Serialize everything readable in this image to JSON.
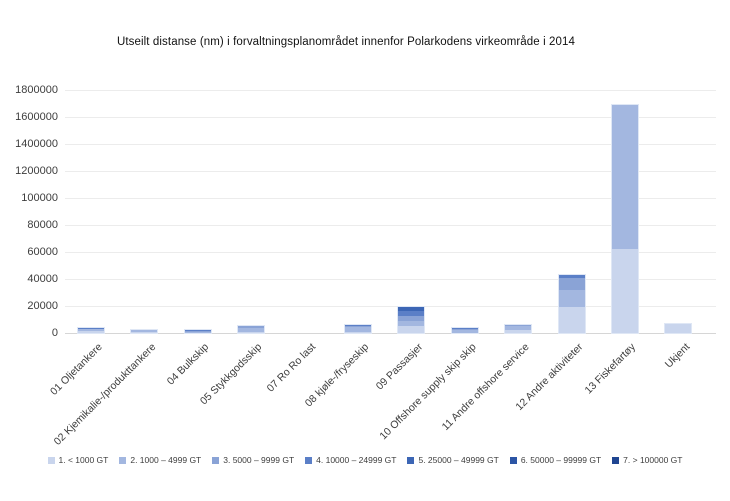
{
  "title": "Utseilt distanse (nm) i forvaltningsplanområdet innenfor Polarkodens virkeområde i 2014",
  "chart_data": {
    "type": "bar",
    "stacked": true,
    "title": "Utseilt distanse (nm) i forvaltningsplanområdet innenfor Polarkodens virkeområde i 2014",
    "grid": true,
    "legend_position": "bottom",
    "categories": [
      "01 Oljetankere",
      "02 Kjemikalie-/produkttankere",
      "04 Bulkskip",
      "05 Stykkgodsskip",
      "07 Ro Ro last",
      "08 kjøle-/fryseskip",
      "09 Passasjer",
      "10 Offshore supply skip skip",
      "11 Andre offshore service",
      "12 Andre aktiviteter",
      "13 Fiskefartøy",
      "Ukjent"
    ],
    "y_ticks": [
      0,
      20000,
      40000,
      60000,
      80000,
      100000,
      1200000,
      1400000,
      1600000,
      1800000
    ],
    "y_tick_labels": [
      "0",
      "20000",
      "40000",
      "60000",
      "80000",
      "100000",
      "1200000",
      "1400000",
      "1600000",
      "1800000"
    ],
    "series": [
      {
        "name": "1. < 1000 GT",
        "color": "#c9d5ed",
        "values": [
          1500,
          800,
          300,
          1000,
          0,
          1000,
          5500,
          0,
          2000,
          19000,
          62000,
          6800
        ]
      },
      {
        "name": "2. 1000 – 4999 GT",
        "color": "#a3b7e0",
        "values": [
          1200,
          1400,
          600,
          2500,
          0,
          3500,
          3500,
          2500,
          3500,
          12500,
          1628000,
          0
        ]
      },
      {
        "name": "3. 5000 – 9999 GT",
        "color": "#8aa3d6",
        "values": [
          800,
          0,
          800,
          2000,
          0,
          1000,
          3500,
          1000,
          500,
          9500,
          0,
          0
        ]
      },
      {
        "name": "4. 10000 – 24999 GT",
        "color": "#5b7fc7",
        "values": [
          500,
          0,
          500,
          0,
          0,
          500,
          3500,
          500,
          0,
          2000,
          0,
          0
        ]
      },
      {
        "name": "5. 25000 – 49999 GT",
        "color": "#3c66b5",
        "values": [
          0,
          0,
          0,
          0,
          0,
          0,
          3000,
          0,
          0,
          0,
          0,
          0
        ]
      },
      {
        "name": "6. 50000 – 99999 GT",
        "color": "#2c55a5",
        "values": [
          0,
          0,
          0,
          0,
          0,
          0,
          0,
          0,
          0,
          0,
          0,
          0
        ]
      },
      {
        "name": "7. > 100000 GT",
        "color": "#1f4591",
        "values": [
          0,
          0,
          0,
          0,
          0,
          0,
          0,
          0,
          0,
          0,
          0,
          0
        ]
      }
    ]
  }
}
